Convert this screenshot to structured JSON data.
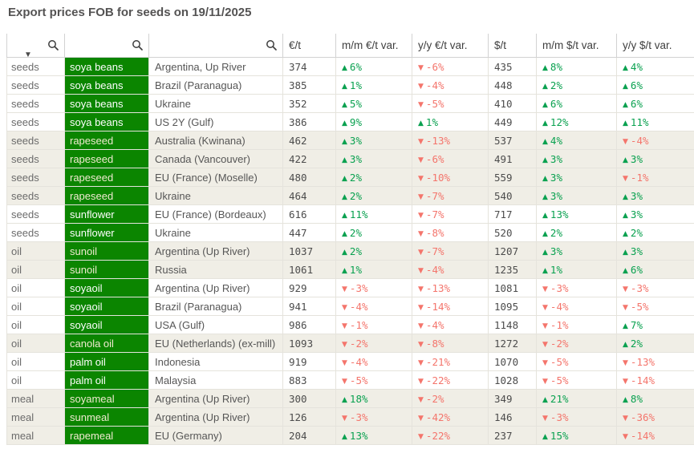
{
  "title": "Export prices FOB for seeds on 19/11/2025",
  "icons": {
    "search": "magnifier-glass",
    "sort_descending": "▼",
    "up_arrow": "▲",
    "down_arrow": "▼"
  },
  "colors": {
    "chip_bg": "#0b8500",
    "chip_text": "#ffffff",
    "chip_text_striped": "#f0ead0",
    "positive": "#0aa150",
    "negative": "#f4756c",
    "stripe": "#f0eee6",
    "text": "#595959",
    "number_text": "#4c4c4c",
    "border": "#e5e3dc",
    "header_border": "#d2d2d2",
    "title": "#545353"
  },
  "table": {
    "search_columns": [
      "category",
      "product",
      "origin"
    ],
    "value_columns": [
      "€/t",
      "m/m €/t var.",
      "y/y €/t var.",
      "$/t",
      "m/m $/t var.",
      "y/y $/t var."
    ],
    "rows": [
      {
        "category": "seeds",
        "product": "soya beans",
        "origin": "Argentina, Up River",
        "eur": 374,
        "mm_eur": 6,
        "yy_eur": -6,
        "usd": 435,
        "mm_usd": 8,
        "yy_usd": 4,
        "striped": false
      },
      {
        "category": "seeds",
        "product": "soya beans",
        "origin": "Brazil (Paranagua)",
        "eur": 385,
        "mm_eur": 1,
        "yy_eur": -4,
        "usd": 448,
        "mm_usd": 2,
        "yy_usd": 6,
        "striped": false
      },
      {
        "category": "seeds",
        "product": "soya beans",
        "origin": "Ukraine",
        "eur": 352,
        "mm_eur": 5,
        "yy_eur": -5,
        "usd": 410,
        "mm_usd": 6,
        "yy_usd": 6,
        "striped": false
      },
      {
        "category": "seeds",
        "product": "soya beans",
        "origin": "US 2Y (Gulf)",
        "eur": 386,
        "mm_eur": 9,
        "yy_eur": 1,
        "usd": 449,
        "mm_usd": 12,
        "yy_usd": 11,
        "striped": false
      },
      {
        "category": "seeds",
        "product": "rapeseed",
        "origin": "Australia (Kwinana)",
        "eur": 462,
        "mm_eur": 3,
        "yy_eur": -13,
        "usd": 537,
        "mm_usd": 4,
        "yy_usd": -4,
        "striped": true
      },
      {
        "category": "seeds",
        "product": "rapeseed",
        "origin": "Canada (Vancouver)",
        "eur": 422,
        "mm_eur": 3,
        "yy_eur": -6,
        "usd": 491,
        "mm_usd": 3,
        "yy_usd": 3,
        "striped": true
      },
      {
        "category": "seeds",
        "product": "rapeseed",
        "origin": "EU (France) (Moselle)",
        "eur": 480,
        "mm_eur": 2,
        "yy_eur": -10,
        "usd": 559,
        "mm_usd": 3,
        "yy_usd": -1,
        "striped": true
      },
      {
        "category": "seeds",
        "product": "rapeseed",
        "origin": "Ukraine",
        "eur": 464,
        "mm_eur": 2,
        "yy_eur": -7,
        "usd": 540,
        "mm_usd": 3,
        "yy_usd": 3,
        "striped": true
      },
      {
        "category": "seeds",
        "product": "sunflower",
        "origin": "EU (France) (Bordeaux)",
        "eur": 616,
        "mm_eur": 11,
        "yy_eur": -7,
        "usd": 717,
        "mm_usd": 13,
        "yy_usd": 3,
        "striped": false
      },
      {
        "category": "seeds",
        "product": "sunflower",
        "origin": "Ukraine",
        "eur": 447,
        "mm_eur": 2,
        "yy_eur": -8,
        "usd": 520,
        "mm_usd": 2,
        "yy_usd": 2,
        "striped": false
      },
      {
        "category": "oil",
        "product": "sunoil",
        "origin": "Argentina (Up River)",
        "eur": 1037,
        "mm_eur": 2,
        "yy_eur": -7,
        "usd": 1207,
        "mm_usd": 3,
        "yy_usd": 3,
        "striped": true
      },
      {
        "category": "oil",
        "product": "sunoil",
        "origin": "Russia",
        "eur": 1061,
        "mm_eur": 1,
        "yy_eur": -4,
        "usd": 1235,
        "mm_usd": 1,
        "yy_usd": 6,
        "striped": true
      },
      {
        "category": "oil",
        "product": "soyaoil",
        "origin": "Argentina (Up River)",
        "eur": 929,
        "mm_eur": -3,
        "yy_eur": -13,
        "usd": 1081,
        "mm_usd": -3,
        "yy_usd": -3,
        "striped": false
      },
      {
        "category": "oil",
        "product": "soyaoil",
        "origin": "Brazil (Paranagua)",
        "eur": 941,
        "mm_eur": -4,
        "yy_eur": -14,
        "usd": 1095,
        "mm_usd": -4,
        "yy_usd": -5,
        "striped": false
      },
      {
        "category": "oil",
        "product": "soyaoil",
        "origin": "USA (Gulf)",
        "eur": 986,
        "mm_eur": -1,
        "yy_eur": -4,
        "usd": 1148,
        "mm_usd": -1,
        "yy_usd": 7,
        "striped": false
      },
      {
        "category": "oil",
        "product": "canola oil",
        "origin": "EU (Netherlands) (ex-mill)",
        "eur": 1093,
        "mm_eur": -2,
        "yy_eur": -8,
        "usd": 1272,
        "mm_usd": -2,
        "yy_usd": 2,
        "striped": true
      },
      {
        "category": "oil",
        "product": "palm oil",
        "origin": "Indonesia",
        "eur": 919,
        "mm_eur": -4,
        "yy_eur": -21,
        "usd": 1070,
        "mm_usd": -5,
        "yy_usd": -13,
        "striped": false
      },
      {
        "category": "oil",
        "product": "palm oil",
        "origin": "Malaysia",
        "eur": 883,
        "mm_eur": -5,
        "yy_eur": -22,
        "usd": 1028,
        "mm_usd": -5,
        "yy_usd": -14,
        "striped": false
      },
      {
        "category": "meal",
        "product": "soyameal",
        "origin": "Argentina (Up River)",
        "eur": 300,
        "mm_eur": 18,
        "yy_eur": -2,
        "usd": 349,
        "mm_usd": 21,
        "yy_usd": 8,
        "striped": true
      },
      {
        "category": "meal",
        "product": "sunmeal",
        "origin": "Argentina (Up River)",
        "eur": 126,
        "mm_eur": -3,
        "yy_eur": -42,
        "usd": 146,
        "mm_usd": -3,
        "yy_usd": -36,
        "striped": true
      },
      {
        "category": "meal",
        "product": "rapemeal",
        "origin": "EU (Germany)",
        "eur": 204,
        "mm_eur": 13,
        "yy_eur": -22,
        "usd": 237,
        "mm_usd": 15,
        "yy_usd": -14,
        "striped": true
      }
    ]
  }
}
